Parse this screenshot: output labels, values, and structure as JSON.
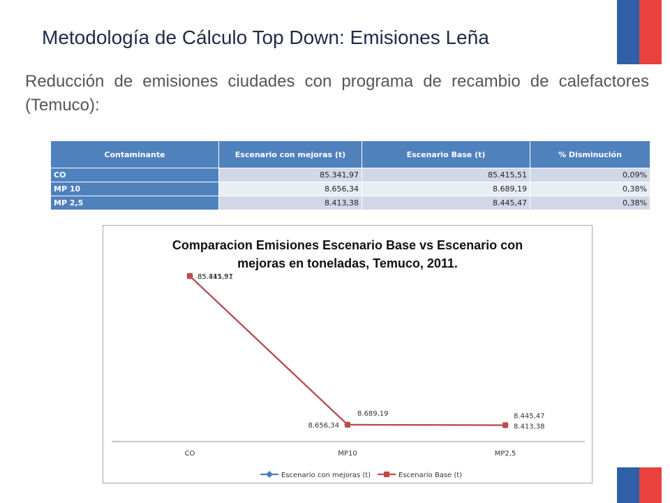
{
  "title": "Metodología de Cálculo Top Down: Emisiones Leña",
  "subtitle": "Reducción de emisiones ciudades con programa de recambio de calefactores (Temuco):",
  "table": {
    "headers": [
      "Contaminante",
      "Escenario con mejoras (t)",
      "Escenario Base (t)",
      "% Disminución"
    ],
    "rows": [
      [
        "CO",
        "85.341,97",
        "85.415,51",
        "0,09%"
      ],
      [
        "MP 10",
        "8.656,34",
        "8.689,19",
        "0,38%"
      ],
      [
        "MP 2,5",
        "8.413,38",
        "8.445,47",
        "0,38%"
      ]
    ]
  },
  "colors": {
    "mejoras": "#4a7ebb",
    "base": "#be4b48",
    "header": "#4f81bd",
    "flag_blue": "#2f5fa6",
    "flag_red": "#e8413f"
  },
  "chart_data": {
    "type": "line",
    "title": "Comparacion Emisiones Escenario Base vs Escenario con mejoras en toneladas, Temuco, 2011.",
    "title_lines": [
      "Comparacion Emisiones Escenario Base vs Escenario con",
      "mejoras en toneladas, Temuco, 2011."
    ],
    "categories": [
      "CO",
      "MP10",
      "MP2,5"
    ],
    "series": [
      {
        "name": "Escenario con mejoras (t)",
        "values": [
          85341.97,
          8656.34,
          8413.38
        ],
        "labels": [
          "85.341,97",
          "8.656,34",
          "8.413,38"
        ],
        "color": "#4a7ebb",
        "marker": "diamond"
      },
      {
        "name": "Escenario Base (t)",
        "values": [
          85415.51,
          8689.19,
          8445.47
        ],
        "labels": [
          "85.415,51",
          "8.689,19",
          "8.445,47"
        ],
        "color": "#be4b48",
        "marker": "square"
      }
    ],
    "ylim": [
      0,
      85415.51
    ],
    "legend": "bottom",
    "grid": false,
    "y_axis_visible": false
  }
}
